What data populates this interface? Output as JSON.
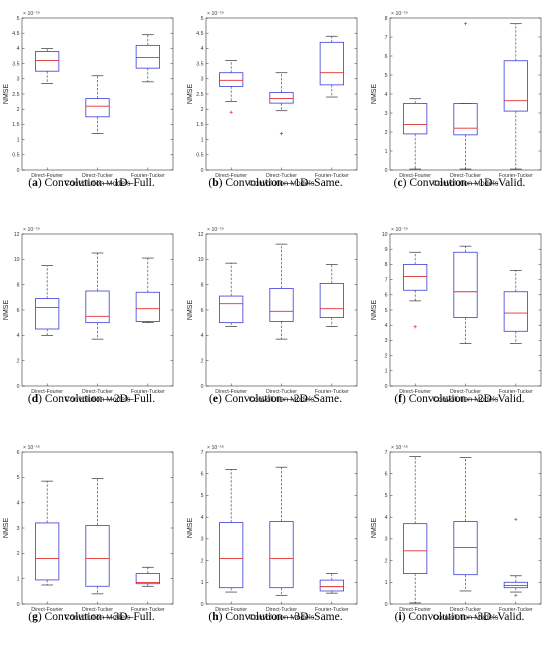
{
  "chart_data": [
    {
      "type": "boxplot",
      "id": "a",
      "caption": {
        "letter": "a",
        "text": "Convolution—1D–Full."
      },
      "xlabel": "Convolution Models",
      "ylabel": "NMSE",
      "yexp": "× 10⁻¹⁶",
      "ylim": [
        0,
        5
      ],
      "yticks": [
        0,
        0.5,
        1,
        1.5,
        2,
        2.5,
        3,
        3.5,
        4,
        4.5,
        5
      ],
      "categories": [
        "Direct-Fourier",
        "Direct-Tucker",
        "Fourier-Tucker"
      ],
      "boxes": [
        {
          "min": 2.85,
          "q1": 3.25,
          "median": 3.6,
          "q3": 3.9,
          "max": 4.0,
          "outliers": []
        },
        {
          "min": 1.2,
          "q1": 1.75,
          "median": 2.1,
          "q3": 2.35,
          "max": 3.1,
          "outliers": []
        },
        {
          "min": 2.9,
          "q1": 3.35,
          "median": 3.7,
          "q3": 4.1,
          "max": 4.45,
          "outliers": []
        }
      ]
    },
    {
      "type": "boxplot",
      "id": "b",
      "caption": {
        "letter": "b",
        "text": "Convolution—1D–Same."
      },
      "xlabel": "Convolution Models",
      "ylabel": "NMSE",
      "yexp": "× 10⁻¹⁶",
      "ylim": [
        0,
        5
      ],
      "yticks": [
        0,
        0.5,
        1,
        1.5,
        2,
        2.5,
        3,
        3.5,
        4,
        4.5,
        5
      ],
      "categories": [
        "Direct-Fourier",
        "Direct-Tucker",
        "Fourier-Tucker"
      ],
      "boxes": [
        {
          "min": 2.25,
          "q1": 2.75,
          "median": 2.95,
          "q3": 3.2,
          "max": 3.6,
          "outliers": [
            1.9
          ]
        },
        {
          "min": 1.95,
          "q1": 2.2,
          "median": 2.35,
          "q3": 2.55,
          "max": 3.2,
          "outliers": [
            1.2
          ]
        },
        {
          "min": 2.4,
          "q1": 2.8,
          "median": 3.2,
          "q3": 4.2,
          "max": 4.4,
          "outliers": []
        }
      ]
    },
    {
      "type": "boxplot",
      "id": "c",
      "caption": {
        "letter": "c",
        "text": "Convolution—1D–Valid."
      },
      "xlabel": "Convolution Models",
      "ylabel": "NMSE",
      "yexp": "× 10⁻¹⁶",
      "ylim": [
        0,
        8
      ],
      "yticks": [
        0,
        1,
        2,
        3,
        4,
        5,
        6,
        7,
        8
      ],
      "categories": [
        "Direct-Fourier",
        "Direct-Tucker",
        "Fourier-Tucker"
      ],
      "boxes": [
        {
          "min": 0.05,
          "q1": 1.9,
          "median": 2.4,
          "q3": 3.5,
          "max": 3.75,
          "outliers": []
        },
        {
          "min": 0.05,
          "q1": 1.85,
          "median": 2.2,
          "q3": 3.5,
          "max": 3.5,
          "outliers": [
            7.7
          ]
        },
        {
          "min": 0.05,
          "q1": 3.1,
          "median": 3.65,
          "q3": 5.75,
          "max": 7.7,
          "outliers": []
        }
      ]
    },
    {
      "type": "boxplot",
      "id": "d",
      "caption": {
        "letter": "d",
        "text": "Convolution—2D–Full."
      },
      "xlabel": "Convolution Models",
      "ylabel": "NMSE",
      "yexp": "× 10⁻¹⁶",
      "ylim": [
        0,
        12
      ],
      "yticks": [
        0,
        2,
        4,
        6,
        8,
        10,
        12
      ],
      "categories": [
        "Direct-Fourier",
        "Direct-Tucker",
        "Fourier-Tucker"
      ],
      "boxes": [
        {
          "min": 4.0,
          "q1": 4.5,
          "median": 6.2,
          "q3": 6.9,
          "max": 9.5,
          "outliers": []
        },
        {
          "min": 3.7,
          "q1": 5.0,
          "median": 5.5,
          "q3": 7.5,
          "max": 10.5,
          "outliers": []
        },
        {
          "min": 5.0,
          "q1": 5.1,
          "median": 6.1,
          "q3": 7.4,
          "max": 10.1,
          "outliers": []
        }
      ]
    },
    {
      "type": "boxplot",
      "id": "e",
      "caption": {
        "letter": "e",
        "text": "Convolution—2D–Same."
      },
      "xlabel": "Convolution Models",
      "ylabel": "NMSE",
      "yexp": "× 10⁻¹⁶",
      "ylim": [
        0,
        12
      ],
      "yticks": [
        0,
        2,
        4,
        6,
        8,
        10,
        12
      ],
      "categories": [
        "Direct-Fourier",
        "Direct-Tucker",
        "Fourier-Tucker"
      ],
      "boxes": [
        {
          "min": 4.7,
          "q1": 5.0,
          "median": 6.5,
          "q3": 7.1,
          "max": 9.7,
          "outliers": []
        },
        {
          "min": 3.7,
          "q1": 5.1,
          "median": 5.9,
          "q3": 7.7,
          "max": 11.2,
          "outliers": []
        },
        {
          "min": 4.7,
          "q1": 5.4,
          "median": 6.1,
          "q3": 8.1,
          "max": 9.6,
          "outliers": []
        }
      ]
    },
    {
      "type": "boxplot",
      "id": "f",
      "caption": {
        "letter": "f",
        "text": "Convolution—2D–Valid."
      },
      "xlabel": "Convolution Models",
      "ylabel": "NMSE",
      "yexp": "× 10⁻¹⁶",
      "ylim": [
        0,
        10
      ],
      "yticks": [
        0,
        1,
        2,
        3,
        4,
        5,
        6,
        7,
        8,
        9,
        10
      ],
      "categories": [
        "Direct-Fourier",
        "Direct-Tucker",
        "Fourier-Tucker"
      ],
      "boxes": [
        {
          "min": 5.6,
          "q1": 6.3,
          "median": 7.2,
          "q3": 8.0,
          "max": 8.8,
          "outliers": [
            3.9
          ]
        },
        {
          "min": 2.8,
          "q1": 4.5,
          "median": 6.2,
          "q3": 8.8,
          "max": 9.2,
          "outliers": []
        },
        {
          "min": 2.8,
          "q1": 3.6,
          "median": 4.8,
          "q3": 6.2,
          "max": 7.6,
          "outliers": []
        }
      ]
    },
    {
      "type": "boxplot",
      "id": "g",
      "caption": {
        "letter": "g",
        "text": "Convolution—3D–Full."
      },
      "xlabel": "Convolution Models",
      "ylabel": "NMSE",
      "yexp": "× 10⁻¹⁶",
      "ylim": [
        0,
        6
      ],
      "yticks": [
        0,
        1,
        2,
        3,
        4,
        5,
        6
      ],
      "categories": [
        "Direct-Fourier",
        "Direct-Tucker",
        "Fourier-Tucker"
      ],
      "boxes": [
        {
          "min": 0.75,
          "q1": 0.95,
          "median": 1.8,
          "q3": 3.2,
          "max": 4.85,
          "outliers": []
        },
        {
          "min": 0.4,
          "q1": 0.7,
          "median": 1.8,
          "q3": 3.1,
          "max": 4.95,
          "outliers": []
        },
        {
          "min": 0.7,
          "q1": 0.8,
          "median": 0.85,
          "q3": 1.2,
          "max": 1.45,
          "outliers": []
        }
      ]
    },
    {
      "type": "boxplot",
      "id": "h",
      "caption": {
        "letter": "h",
        "text": "Convolution—3D–Same."
      },
      "xlabel": "Convolution Models",
      "ylabel": "NMSE",
      "yexp": "× 10⁻¹⁶",
      "ylim": [
        0,
        7
      ],
      "yticks": [
        0,
        1,
        2,
        3,
        4,
        5,
        6,
        7
      ],
      "categories": [
        "Direct-Fourier",
        "Direct-Tucker",
        "Fourier-Tucker"
      ],
      "boxes": [
        {
          "min": 0.55,
          "q1": 0.75,
          "median": 2.1,
          "q3": 3.75,
          "max": 6.2,
          "outliers": []
        },
        {
          "min": 0.4,
          "q1": 0.75,
          "median": 2.1,
          "q3": 3.8,
          "max": 6.3,
          "outliers": []
        },
        {
          "min": 0.5,
          "q1": 0.6,
          "median": 0.8,
          "q3": 1.1,
          "max": 1.4,
          "outliers": []
        }
      ]
    },
    {
      "type": "boxplot",
      "id": "i",
      "caption": {
        "letter": "i",
        "text": "Convolution—3D–Valid."
      },
      "xlabel": "Convolution Models",
      "ylabel": "NMSE",
      "yexp": "× 10⁻¹⁶",
      "ylim": [
        0,
        7
      ],
      "yticks": [
        0,
        1,
        2,
        3,
        4,
        5,
        6,
        7
      ],
      "categories": [
        "Direct-Fourier",
        "Direct-Tucker",
        "Fourier-Tucker"
      ],
      "boxes": [
        {
          "min": 0.05,
          "q1": 1.4,
          "median": 2.45,
          "q3": 3.7,
          "max": 6.8,
          "outliers": []
        },
        {
          "min": 0.6,
          "q1": 1.35,
          "median": 2.6,
          "q3": 3.8,
          "max": 6.75,
          "outliers": []
        },
        {
          "min": 0.55,
          "q1": 0.75,
          "median": 0.85,
          "q3": 1.0,
          "max": 1.3,
          "outliers": [
            3.9,
            0.4
          ]
        }
      ]
    }
  ],
  "colors": {
    "box": "#3d3dd8",
    "median": "#e03030",
    "whisker": "#333333",
    "outlier": "#e03030",
    "axis": "#333333"
  }
}
